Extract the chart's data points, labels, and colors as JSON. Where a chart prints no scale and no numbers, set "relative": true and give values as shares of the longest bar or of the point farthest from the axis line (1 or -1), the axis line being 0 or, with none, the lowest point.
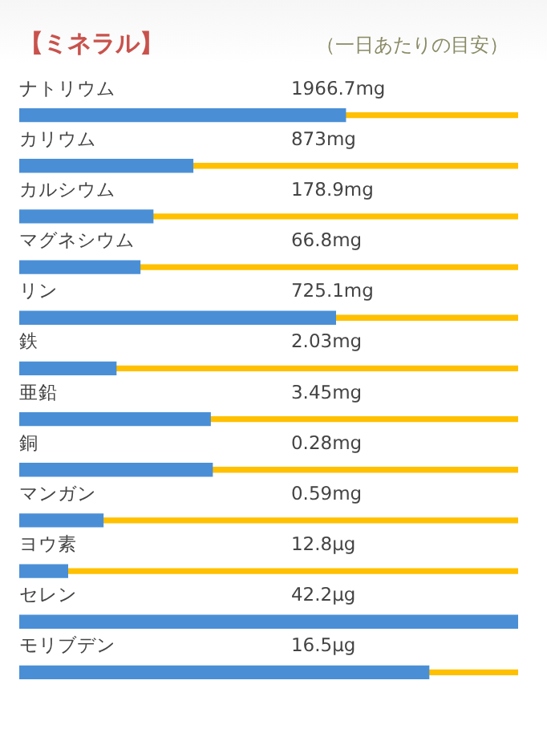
{
  "chart_data": {
    "type": "bar",
    "orientation": "horizontal",
    "relative": true,
    "stacked": true,
    "title": "【ミネラル】",
    "subtitle": "（一日あたりの目安）",
    "categories": [
      "ナトリウム",
      "カリウム",
      "カルシウム",
      "マグネシウム",
      "リン",
      "鉄",
      "亜鉛",
      "銅",
      "マンガン",
      "ヨウ素",
      "セレン",
      "モリブデン"
    ],
    "series": [
      {
        "color": "#4a8fd6",
        "values": [
          0.654,
          0.348,
          0.268,
          0.242,
          0.634,
          0.194,
          0.383,
          0.387,
          0.168,
          0.097,
          1,
          0.821
        ]
      },
      {
        "color": "#ffc000",
        "values": [
          0.346,
          0.652,
          0.732,
          0.758,
          0.366,
          0.806,
          0.617,
          0.613,
          0.832,
          0.903,
          0,
          0.179
        ]
      }
    ],
    "annotations": [
      "1966.7mg",
      "873mg",
      "178.9mg",
      "66.8mg",
      "725.1mg",
      "2.03mg",
      "3.45mg",
      "0.28mg",
      "0.59mg",
      "12.8μg",
      "42.2μg",
      "16.5μg"
    ],
    "legend": false
  }
}
